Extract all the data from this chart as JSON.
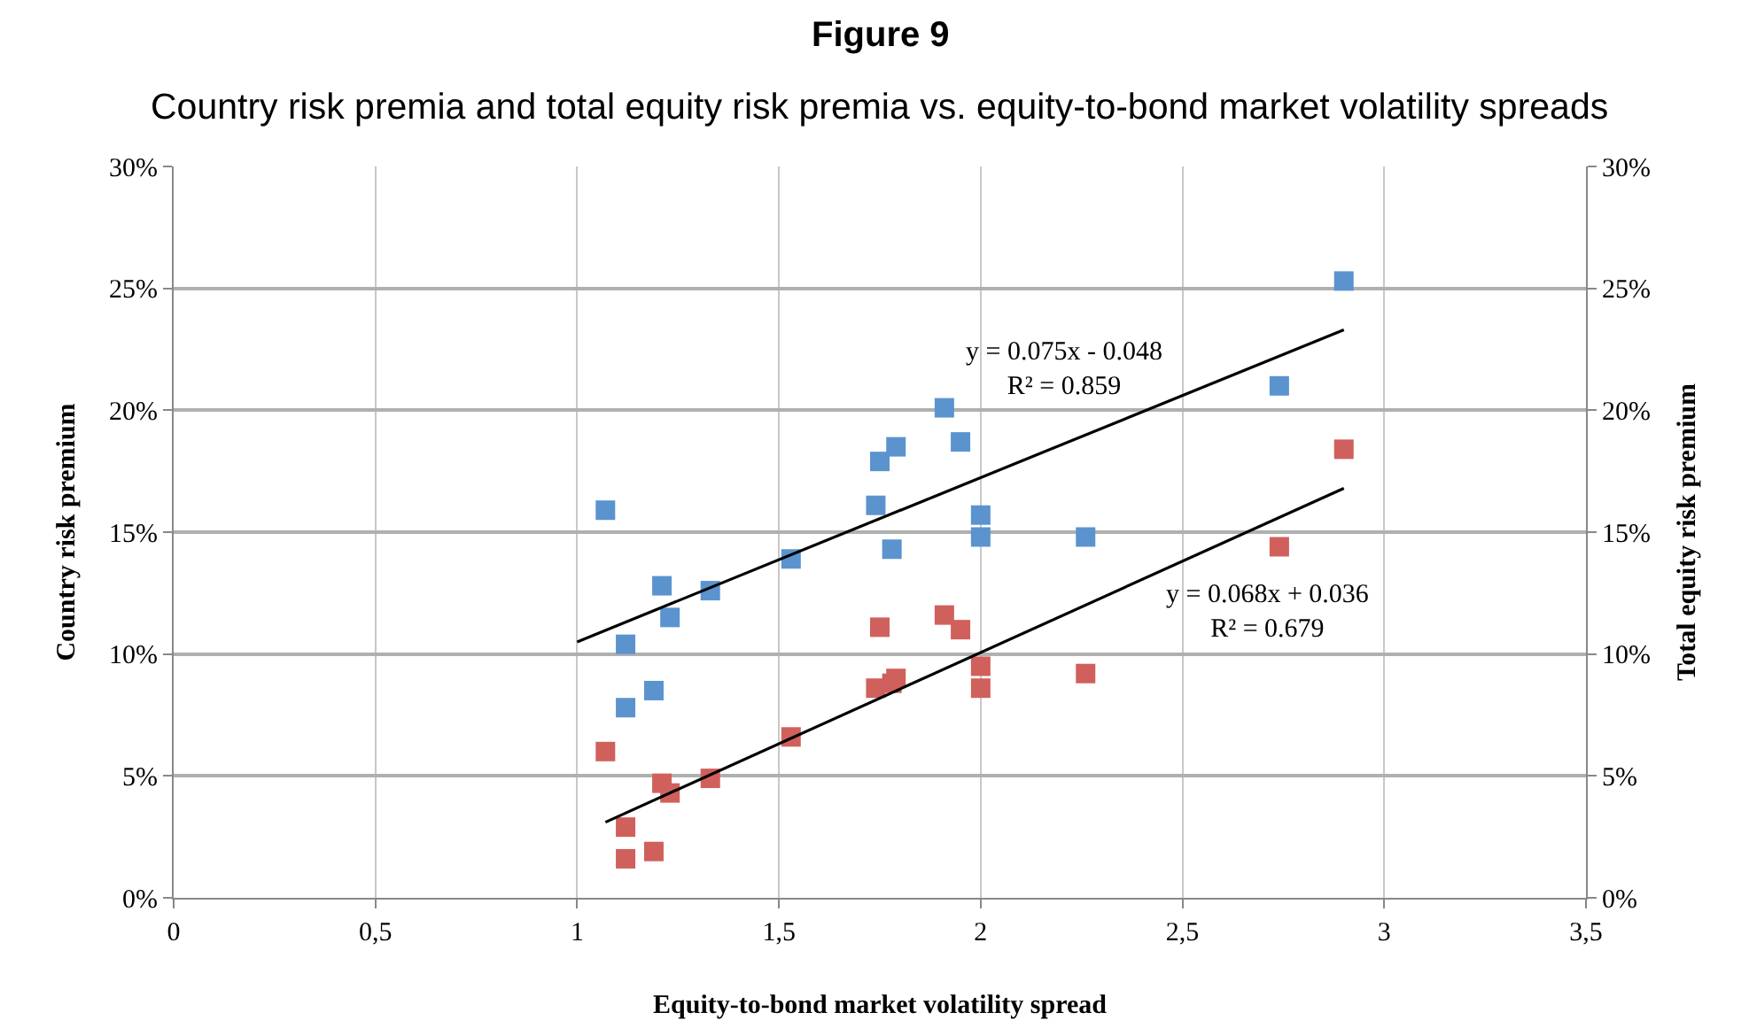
{
  "chart_data": {
    "type": "scatter",
    "title": "Figure 9",
    "subtitle": "Country risk premia and total equity risk premia vs. equity-to-bond market volatility spreads",
    "xlabel": "Equity-to-bond market volatility spread",
    "ylabel": "Country risk premium",
    "y2label": "Total equity risk premium",
    "x": [
      1.07,
      1.12,
      1.12,
      1.19,
      1.21,
      1.23,
      1.33,
      1.53,
      1.74,
      1.75,
      1.79,
      1.78,
      1.91,
      1.95,
      2.0,
      2.0,
      2.26,
      2.74,
      2.9
    ],
    "series": [
      {
        "color": "#5b93cf",
        "values": [
          15.9,
          10.4,
          7.8,
          8.5,
          12.8,
          11.5,
          12.6,
          13.9,
          16.1,
          17.9,
          18.5,
          14.3,
          20.1,
          18.7,
          15.7,
          14.8,
          14.8,
          21.0,
          25.3
        ]
      },
      {
        "color": "#d0605c",
        "values": [
          6.0,
          2.9,
          1.6,
          1.9,
          4.7,
          4.3,
          4.9,
          6.6,
          8.6,
          11.1,
          9.0,
          8.8,
          11.6,
          11.0,
          9.5,
          8.6,
          9.2,
          14.4,
          18.4
        ]
      },
      {
        "type": "line",
        "color": "#000000",
        "x": [
          1.0,
          2.9
        ],
        "values": [
          10.5,
          23.3
        ],
        "marker": "none"
      },
      {
        "type": "line",
        "color": "#000000",
        "x": [
          1.07,
          2.9
        ],
        "values": [
          3.1,
          16.8
        ],
        "marker": "none"
      }
    ],
    "annotations": [
      "y = 0.075x - 0.048\nR² = 0.859",
      "y = 0.068x + 0.036\nR² = 0.679"
    ],
    "xlim": [
      0,
      3.5
    ],
    "xticks": [
      {
        "value": 0,
        "label": "0"
      },
      {
        "value": 0.5,
        "label": "0,5"
      },
      {
        "value": 1,
        "label": "1"
      },
      {
        "value": 1.5,
        "label": "1,5"
      },
      {
        "value": 2,
        "label": "2"
      },
      {
        "value": 2.5,
        "label": "2,5"
      },
      {
        "value": 3,
        "label": "3"
      },
      {
        "value": 3.5,
        "label": "3,5"
      }
    ],
    "ylim": [
      0,
      30
    ],
    "yticks": [
      {
        "value": 0,
        "label": "0%"
      },
      {
        "value": 5,
        "label": "5%"
      },
      {
        "value": 10,
        "label": "10%"
      },
      {
        "value": 15,
        "label": "15%"
      },
      {
        "value": 20,
        "label": "20%"
      },
      {
        "value": 25,
        "label": "25%"
      },
      {
        "value": 30,
        "label": "30%"
      }
    ],
    "y2lim": [
      0,
      30
    ],
    "y2ticks": [
      {
        "value": 0,
        "label": "0%"
      },
      {
        "value": 5,
        "label": "5%"
      },
      {
        "value": 10,
        "label": "10%"
      },
      {
        "value": 15,
        "label": "15%"
      },
      {
        "value": 20,
        "label": "20%"
      },
      {
        "value": 25,
        "label": "25%"
      },
      {
        "value": 30,
        "label": "30%"
      }
    ],
    "grid": true,
    "marker": "square",
    "line_style": "solid"
  }
}
